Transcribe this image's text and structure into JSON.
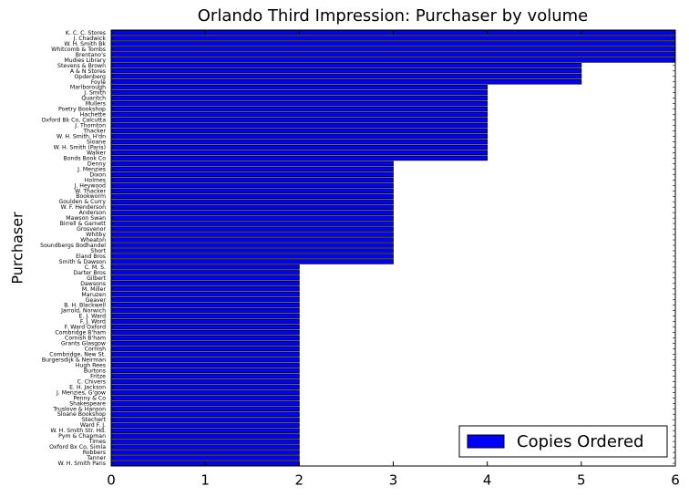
{
  "chart_data": {
    "type": "barh",
    "title": "Orlando Third Impression: Purchaser by volume",
    "y_label": "Purchaser",
    "categories": [
      "K. C. C. Stores",
      "J. Chadwick",
      "W. H. Smith Bk",
      "Whitcomb & Tombs",
      "Brentano's",
      "Mudies Library",
      "Stevens & Brown",
      "A & N Stores",
      "Opdenberg",
      "Foyle",
      "Marlborough",
      "J. Smith",
      "Quaritch",
      "Mullers",
      "Poetry Bookshop",
      "Hachette",
      "Oxford Bk Co, Calcutta",
      "J. Thornton",
      "Thacker",
      "W. H. Smith, H'dn",
      "Sloane",
      "W. H. Smith (Paris)",
      "Walker",
      "Bonds Book Co",
      "Denny",
      "J. Menzies",
      "Dixon",
      "Holmes",
      "J. Heywood",
      "W. Thacker",
      "Bookworm",
      "Goulden & Curry",
      "W. F. Henderson",
      "Anderson",
      "Mawson Swan",
      "Birrell & Garnett",
      "Grosvenor",
      "Whitby",
      "Wheaton",
      "Soundbergs Bodhandel",
      "Short",
      "Eland Bros",
      "Smith & Dawson",
      "C. M. S.",
      "Darter Bros",
      "Gilbert",
      "Dawsons",
      "M. Miller",
      "Maruzen",
      "Geaver",
      "B. H. Blackwell",
      "Jarrold, Norwich",
      "E. J. Ward",
      "F. J. Word",
      "F. Ward Oxford",
      "Combridge B'ham",
      "Cornish B'ham",
      "Grants Glasgow",
      "Cornish",
      "Combridge, New St.",
      "Burgersdijk & Neirman",
      "Hugh Rees",
      "Burtons",
      "Fritze",
      "C. Chivers",
      "E. H. Jackson",
      "J. Menzies, G'gow",
      "Penny & Co",
      "Shakespeare",
      "Truslove & Hanson",
      "Sloane Bookshop",
      "Stechert",
      "Ward F. J.",
      "W. H. Smith Str. Hd.",
      "Pym & Chapman",
      "Times",
      "Oxford Bx Co, Simla",
      "Robbers",
      "Tanner",
      "W. H. Smith Paris"
    ],
    "series": [
      {
        "name": "Copies Ordered",
        "color": "#0000ff",
        "values": [
          6,
          6,
          6,
          6,
          6,
          6,
          5,
          5,
          5,
          5,
          4,
          4,
          4,
          4,
          4,
          4,
          4,
          4,
          4,
          4,
          4,
          4,
          4,
          4,
          3,
          3,
          3,
          3,
          3,
          3,
          3,
          3,
          3,
          3,
          3,
          3,
          3,
          3,
          3,
          3,
          3,
          3,
          3,
          2,
          2,
          2,
          2,
          2,
          2,
          2,
          2,
          2,
          2,
          2,
          2,
          2,
          2,
          2,
          2,
          2,
          2,
          2,
          2,
          2,
          2,
          2,
          2,
          2,
          2,
          2,
          2,
          2,
          2,
          2,
          2,
          2,
          2,
          2,
          2,
          2
        ]
      }
    ],
    "xlim": [
      0,
      6
    ],
    "xticks": [
      0,
      1,
      2,
      3,
      4,
      5,
      6
    ],
    "legend": "lower right"
  }
}
